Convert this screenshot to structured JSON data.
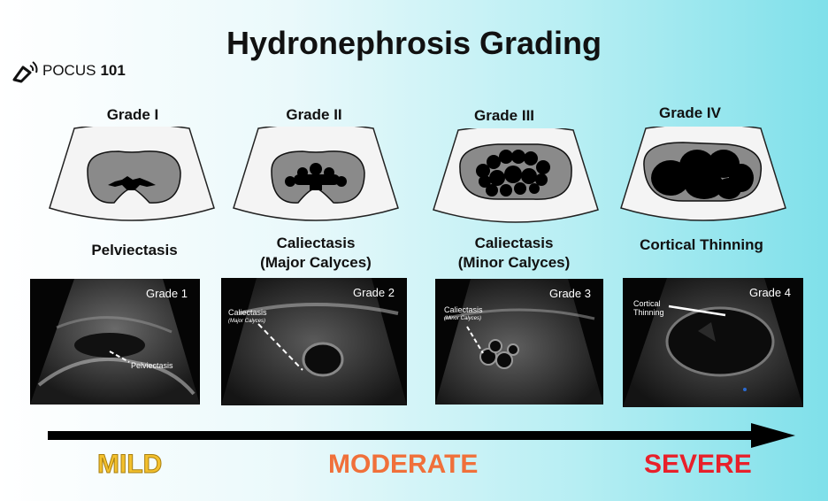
{
  "title": "Hydronephrosis Grading",
  "logo": {
    "text": "POCUS",
    "number": "101"
  },
  "grades": [
    {
      "heading": "Grade I",
      "description_lines": [
        "Pelviectasis"
      ],
      "image_label": "Grade 1",
      "annotation": "Pelviectasis",
      "annotation_sub": ""
    },
    {
      "heading": "Grade II",
      "description_lines": [
        "Caliectasis",
        "(Major Calyces)"
      ],
      "image_label": "Grade 2",
      "annotation": "Caliectasis",
      "annotation_sub": "(Major Calyces)"
    },
    {
      "heading": "Grade III",
      "description_lines": [
        "Caliectasis",
        "(Minor Calyces)"
      ],
      "image_label": "Grade 3",
      "annotation": "Caliectasis",
      "annotation_sub": "(Minor Calyces)"
    },
    {
      "heading": "Grade IV",
      "description_lines": [
        "Cortical Thinning"
      ],
      "image_label": "Grade 4",
      "annotation": "Cortical Thinning",
      "annotation_sub": ""
    }
  ],
  "severity": {
    "mild": "MILD",
    "moderate": "MODERATE",
    "severe": "SEVERE"
  },
  "colors": {
    "mild": "#f3c02d",
    "moderate": "#f0703a",
    "severe": "#e8202a",
    "kidney_fill": "#8a8a8a",
    "fan_fill": "#f4f4f4"
  }
}
